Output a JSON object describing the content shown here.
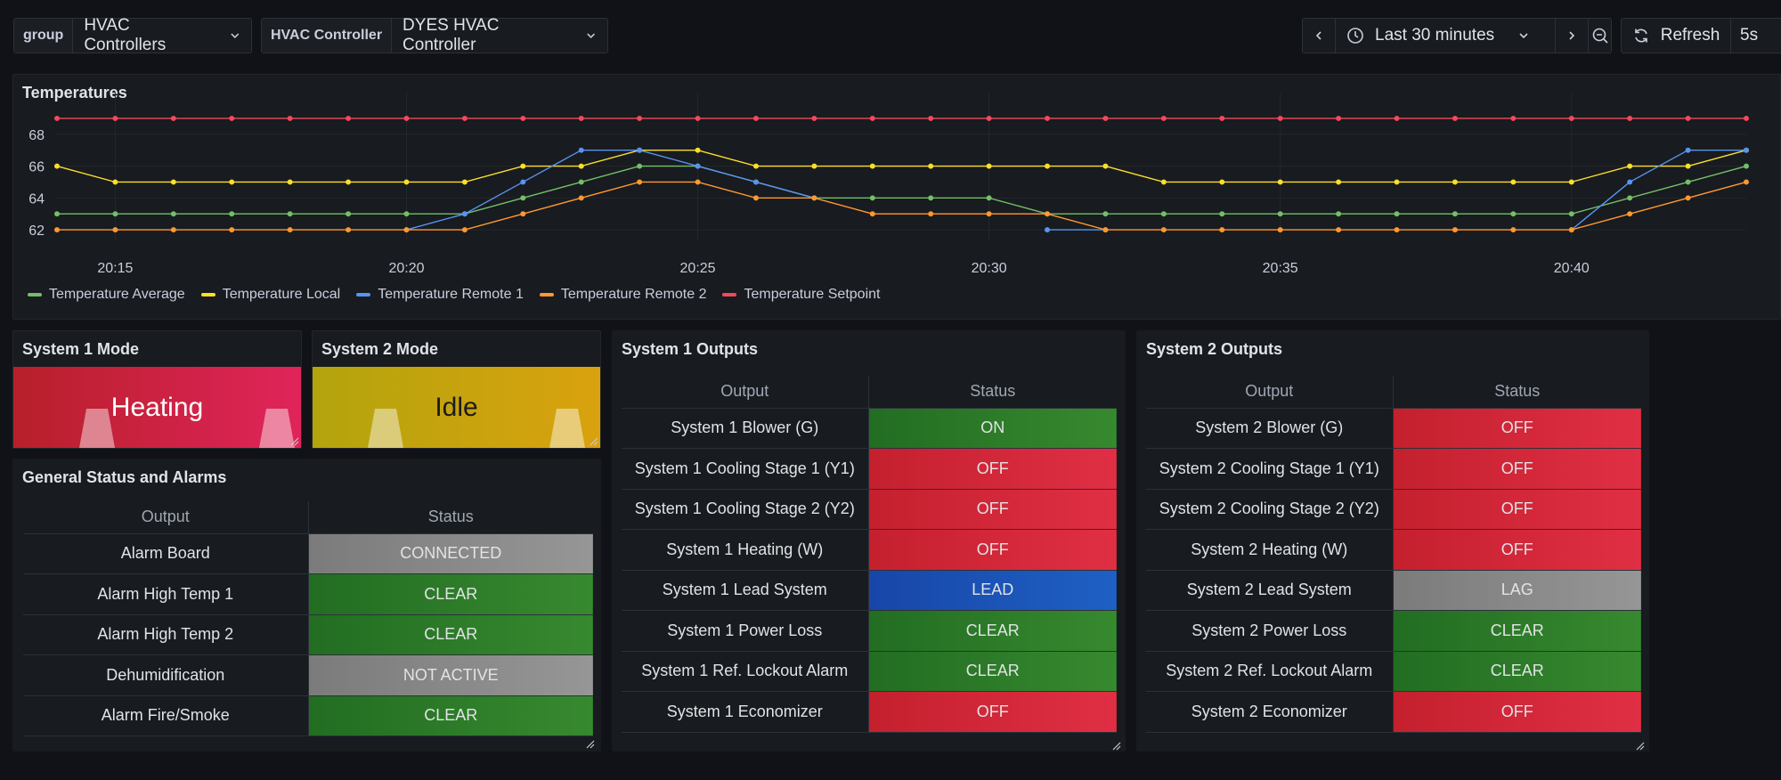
{
  "topbar": {
    "group_label": "group",
    "group_value": "HVAC Controllers",
    "controller_label": "HVAC Controller",
    "controller_value": "DYES HVAC Controller",
    "time_range": "Last 30 minutes",
    "refresh_label": "Refresh",
    "refresh_interval": "5s"
  },
  "temperatures": {
    "title": "Temperatures",
    "legend": [
      {
        "name": "Temperature Average",
        "color": "#73bf69"
      },
      {
        "name": "Temperature Local",
        "color": "#fade2a"
      },
      {
        "name": "Temperature Remote 1",
        "color": "#5794f2"
      },
      {
        "name": "Temperature Remote 2",
        "color": "#ff9830"
      },
      {
        "name": "Temperature Setpoint",
        "color": "#f2495c"
      }
    ]
  },
  "chart_data": {
    "type": "line",
    "title": "Temperatures",
    "xlabel": "",
    "ylabel": "",
    "x_ticks": [
      "20:15",
      "20:20",
      "20:25",
      "20:30",
      "20:35",
      "20:40"
    ],
    "y_ticks": [
      62,
      64,
      66,
      68
    ],
    "ylim": [
      61.5,
      69.5
    ],
    "x_minutes": [
      14.0,
      15.0,
      16.0,
      17.0,
      18.0,
      19.0,
      20.0,
      21.0,
      22.0,
      23.0,
      24.0,
      25.0,
      26.0,
      27.0,
      28.0,
      29.0,
      30.0,
      31.0,
      32.0,
      33.0,
      34.0,
      35.0,
      36.0,
      37.0,
      38.0,
      39.0,
      40.0,
      41.0,
      42.0,
      43.0
    ],
    "x_minutes_note": "minutes past 20:00",
    "series": [
      {
        "name": "Temperature Setpoint",
        "color": "#f2495c",
        "values": [
          69,
          69,
          69,
          69,
          69,
          69,
          69,
          69,
          69,
          69,
          69,
          69,
          69,
          69,
          69,
          69,
          69,
          69,
          69,
          69,
          69,
          69,
          69,
          69,
          69,
          69,
          69,
          69,
          69,
          69
        ]
      },
      {
        "name": "Temperature Local",
        "color": "#fade2a",
        "values": [
          66,
          65,
          65,
          65,
          65,
          65,
          65,
          65,
          66,
          66,
          67,
          67,
          66,
          66,
          66,
          66,
          66,
          66,
          66,
          65,
          65,
          65,
          65,
          65,
          65,
          65,
          65,
          66,
          66,
          67
        ]
      },
      {
        "name": "Temperature Average",
        "color": "#73bf69",
        "values": [
          63,
          63,
          63,
          63,
          63,
          63,
          63,
          63,
          64,
          65,
          66,
          66,
          65,
          64,
          64,
          64,
          64,
          63,
          63,
          63,
          63,
          63,
          63,
          63,
          63,
          63,
          63,
          64,
          65,
          66
        ]
      },
      {
        "name": "Temperature Remote 1",
        "color": "#5794f2",
        "values": [
          null,
          null,
          null,
          null,
          null,
          null,
          62,
          63,
          65,
          67,
          67,
          66,
          65,
          64,
          null,
          null,
          null,
          62,
          62,
          null,
          null,
          null,
          null,
          null,
          null,
          null,
          62,
          65,
          67,
          67
        ]
      },
      {
        "name": "Temperature Remote 2",
        "color": "#ff9830",
        "values": [
          62,
          62,
          62,
          62,
          62,
          62,
          62,
          62,
          63,
          64,
          65,
          65,
          64,
          64,
          63,
          63,
          63,
          63,
          62,
          62,
          62,
          62,
          62,
          62,
          62,
          62,
          62,
          63,
          64,
          65
        ]
      }
    ]
  },
  "system1_mode": {
    "title": "System 1 Mode",
    "value": "Heating"
  },
  "system2_mode": {
    "title": "System 2 Mode",
    "value": "Idle"
  },
  "general": {
    "title": "General Status and Alarms",
    "col_output": "Output",
    "col_status": "Status",
    "rows": [
      {
        "output": "Alarm Board",
        "status": "CONNECTED",
        "state": "grey"
      },
      {
        "output": "Alarm High Temp 1",
        "status": "CLEAR",
        "state": "green"
      },
      {
        "output": "Alarm High Temp 2",
        "status": "CLEAR",
        "state": "green"
      },
      {
        "output": "Dehumidification",
        "status": "NOT ACTIVE",
        "state": "grey"
      },
      {
        "output": "Alarm Fire/Smoke",
        "status": "CLEAR",
        "state": "green"
      }
    ]
  },
  "system1_outputs": {
    "title": "System 1 Outputs",
    "col_output": "Output",
    "col_status": "Status",
    "rows": [
      {
        "output": "System 1 Blower (G)",
        "status": "ON",
        "state": "green"
      },
      {
        "output": "System 1 Cooling Stage 1 (Y1)",
        "status": "OFF",
        "state": "red"
      },
      {
        "output": "System 1 Cooling Stage 2 (Y2)",
        "status": "OFF",
        "state": "red"
      },
      {
        "output": "System 1 Heating (W)",
        "status": "OFF",
        "state": "red"
      },
      {
        "output": "System 1 Lead System",
        "status": "LEAD",
        "state": "blue"
      },
      {
        "output": "System 1 Power Loss",
        "status": "CLEAR",
        "state": "green"
      },
      {
        "output": "System 1 Ref. Lockout Alarm",
        "status": "CLEAR",
        "state": "green"
      },
      {
        "output": "System 1 Economizer",
        "status": "OFF",
        "state": "red"
      }
    ]
  },
  "system2_outputs": {
    "title": "System 2 Outputs",
    "col_output": "Output",
    "col_status": "Status",
    "rows": [
      {
        "output": "System 2 Blower (G)",
        "status": "OFF",
        "state": "red"
      },
      {
        "output": "System 2 Cooling Stage 1 (Y1)",
        "status": "OFF",
        "state": "red"
      },
      {
        "output": "System 2 Cooling Stage 2 (Y2)",
        "status": "OFF",
        "state": "red"
      },
      {
        "output": "System 2 Heating (W)",
        "status": "OFF",
        "state": "red"
      },
      {
        "output": "System 2 Lead System",
        "status": "LAG",
        "state": "grey"
      },
      {
        "output": "System 2 Power Loss",
        "status": "CLEAR",
        "state": "green"
      },
      {
        "output": "System 2 Ref. Lockout Alarm",
        "status": "CLEAR",
        "state": "green"
      },
      {
        "output": "System 2 Economizer",
        "status": "OFF",
        "state": "red"
      }
    ]
  }
}
